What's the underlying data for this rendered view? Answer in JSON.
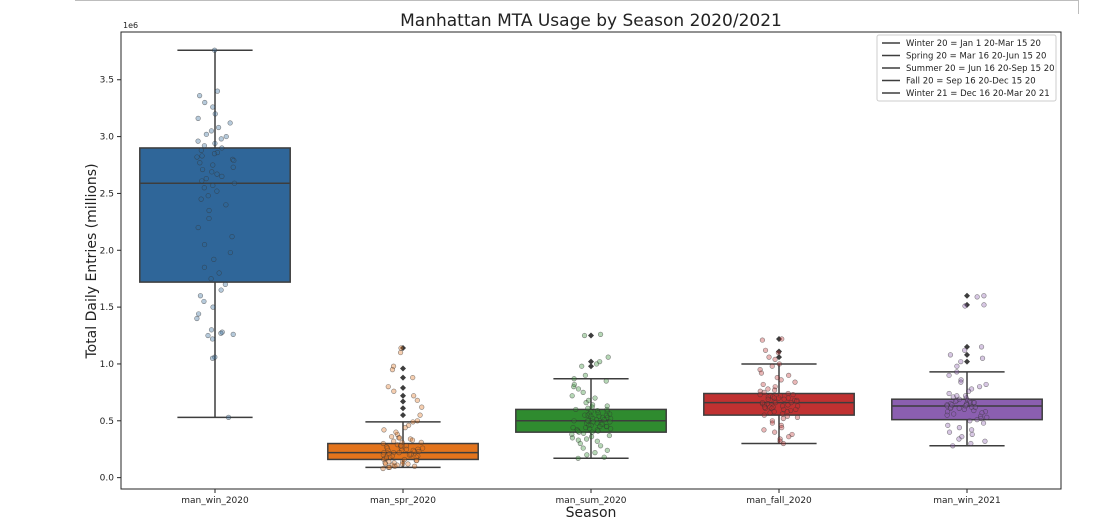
{
  "chart_data": {
    "type": "box",
    "title": "Manhattan MTA Usage by Season 2020/2021",
    "xlabel": "Season",
    "ylabel": "Total Daily Entries (millions)",
    "y_offset_label": "1e6",
    "ylim": [
      -0.1,
      3.92
    ],
    "y_ticks": [
      0.0,
      0.5,
      1.0,
      1.5,
      2.0,
      2.5,
      3.0,
      3.5
    ],
    "y_tick_labels": [
      "0.0",
      "0.5",
      "1.0",
      "1.5",
      "2.0",
      "2.5",
      "3.0",
      "3.5"
    ],
    "grid": false,
    "legend_position": "top-right",
    "legend": [
      "Winter 20 = Jan 1 20-Mar 15 20",
      "Spring 20 = Mar 16 20-Jun 15 20",
      "Summer 20 = Jun 16 20-Sep 15 20",
      "Fall 20 = Sep 16 20-Dec 15 20",
      "Winter 21 = Dec 16 20-Mar 20 21"
    ],
    "categories": [
      "man_win_2020",
      "man_spr_2020",
      "man_sum_2020",
      "man_fall_2020",
      "man_win_2021"
    ],
    "series": [
      {
        "category": "man_win_2020",
        "color": "#2f6699",
        "whisker_low": 0.53,
        "q1": 1.72,
        "median": 2.59,
        "q3": 2.9,
        "whisker_high": 3.76,
        "outliers": [],
        "points": [
          3.76,
          3.4,
          3.36,
          3.3,
          3.26,
          3.2,
          3.16,
          3.12,
          3.08,
          3.05,
          3.02,
          3.0,
          2.98,
          2.96,
          2.94,
          2.92,
          2.9,
          2.88,
          2.86,
          2.85,
          2.83,
          2.82,
          2.8,
          2.79,
          2.77,
          2.75,
          2.73,
          2.71,
          2.69,
          2.67,
          2.65,
          2.63,
          2.61,
          2.59,
          2.57,
          2.55,
          2.52,
          2.48,
          2.45,
          2.4,
          2.35,
          2.28,
          2.2,
          2.12,
          2.05,
          1.98,
          1.92,
          1.85,
          1.8,
          1.75,
          1.7,
          1.65,
          1.6,
          1.55,
          1.5,
          1.44,
          1.4,
          1.3,
          1.28,
          1.27,
          1.26,
          1.25,
          1.22,
          1.06,
          1.05,
          0.53
        ]
      },
      {
        "category": "man_spr_2020",
        "color": "#e3741c",
        "whisker_low": 0.09,
        "q1": 0.16,
        "median": 0.22,
        "q3": 0.3,
        "whisker_high": 0.49,
        "outliers": [
          1.14,
          0.96,
          0.88,
          0.79,
          0.72,
          0.67,
          0.61,
          0.55
        ],
        "points": [
          1.14,
          1.1,
          0.98,
          0.95,
          0.88,
          0.8,
          0.76,
          0.72,
          0.68,
          0.62,
          0.55,
          0.5,
          0.49,
          0.46,
          0.44,
          0.42,
          0.4,
          0.38,
          0.36,
          0.35,
          0.34,
          0.33,
          0.32,
          0.31,
          0.3,
          0.29,
          0.28,
          0.28,
          0.27,
          0.26,
          0.26,
          0.25,
          0.25,
          0.24,
          0.24,
          0.23,
          0.23,
          0.22,
          0.22,
          0.21,
          0.21,
          0.2,
          0.2,
          0.19,
          0.19,
          0.18,
          0.18,
          0.17,
          0.17,
          0.16,
          0.16,
          0.15,
          0.15,
          0.14,
          0.14,
          0.13,
          0.13,
          0.12,
          0.12,
          0.11,
          0.11,
          0.1,
          0.1,
          0.09,
          0.09,
          0.08,
          0.12,
          0.18,
          0.22,
          0.26,
          0.31,
          0.35,
          0.2,
          0.24,
          0.28
        ]
      },
      {
        "category": "man_sum_2020",
        "color": "#2f8b2f",
        "whisker_low": 0.17,
        "q1": 0.4,
        "median": 0.5,
        "q3": 0.6,
        "whisker_high": 0.87,
        "outliers": [
          1.25,
          1.02,
          0.98
        ],
        "points": [
          1.26,
          1.25,
          1.06,
          1.02,
          1.0,
          0.98,
          0.9,
          0.87,
          0.85,
          0.82,
          0.8,
          0.78,
          0.75,
          0.72,
          0.7,
          0.68,
          0.66,
          0.64,
          0.63,
          0.62,
          0.61,
          0.6,
          0.6,
          0.59,
          0.58,
          0.58,
          0.57,
          0.56,
          0.56,
          0.55,
          0.55,
          0.54,
          0.54,
          0.53,
          0.53,
          0.52,
          0.52,
          0.51,
          0.51,
          0.5,
          0.5,
          0.49,
          0.49,
          0.48,
          0.48,
          0.47,
          0.47,
          0.46,
          0.46,
          0.45,
          0.45,
          0.44,
          0.44,
          0.43,
          0.43,
          0.42,
          0.42,
          0.41,
          0.41,
          0.4,
          0.4,
          0.39,
          0.38,
          0.37,
          0.36,
          0.35,
          0.34,
          0.33,
          0.32,
          0.3,
          0.28,
          0.26,
          0.24,
          0.22,
          0.2,
          0.18,
          0.17,
          0.55,
          0.5,
          0.45
        ]
      },
      {
        "category": "man_fall_2020",
        "color": "#c03131",
        "whisker_low": 0.3,
        "q1": 0.55,
        "median": 0.66,
        "q3": 0.74,
        "whisker_high": 1.0,
        "outliers": [
          1.22,
          1.11,
          1.06
        ],
        "points": [
          1.22,
          1.21,
          1.12,
          1.1,
          1.06,
          1.04,
          1.0,
          0.98,
          0.95,
          0.92,
          0.9,
          0.88,
          0.86,
          0.84,
          0.82,
          0.8,
          0.78,
          0.77,
          0.76,
          0.75,
          0.74,
          0.73,
          0.73,
          0.72,
          0.72,
          0.71,
          0.71,
          0.7,
          0.7,
          0.69,
          0.69,
          0.68,
          0.68,
          0.67,
          0.67,
          0.66,
          0.66,
          0.65,
          0.65,
          0.64,
          0.64,
          0.63,
          0.63,
          0.62,
          0.62,
          0.61,
          0.61,
          0.6,
          0.6,
          0.59,
          0.58,
          0.57,
          0.56,
          0.55,
          0.54,
          0.53,
          0.52,
          0.5,
          0.48,
          0.46,
          0.44,
          0.42,
          0.4,
          0.38,
          0.36,
          0.34,
          0.32,
          0.3,
          0.7,
          0.66,
          0.62,
          0.58
        ]
      },
      {
        "category": "man_win_2021",
        "color": "#8b5fb0",
        "whisker_low": 0.28,
        "q1": 0.51,
        "median": 0.63,
        "q3": 0.69,
        "whisker_high": 0.93,
        "outliers": [
          1.6,
          1.52,
          1.15,
          1.08,
          1.02
        ],
        "points": [
          1.6,
          1.59,
          1.52,
          1.51,
          1.15,
          1.12,
          1.08,
          1.05,
          1.02,
          0.98,
          0.93,
          0.9,
          0.86,
          0.84,
          0.82,
          0.8,
          0.78,
          0.76,
          0.74,
          0.72,
          0.71,
          0.7,
          0.69,
          0.68,
          0.68,
          0.67,
          0.67,
          0.66,
          0.66,
          0.65,
          0.65,
          0.64,
          0.64,
          0.63,
          0.63,
          0.62,
          0.62,
          0.61,
          0.61,
          0.6,
          0.59,
          0.58,
          0.57,
          0.56,
          0.55,
          0.54,
          0.53,
          0.52,
          0.51,
          0.5,
          0.48,
          0.46,
          0.44,
          0.42,
          0.4,
          0.38,
          0.36,
          0.34,
          0.32,
          0.3,
          0.28,
          0.66,
          0.62,
          0.58,
          0.72,
          0.64
        ]
      }
    ]
  }
}
